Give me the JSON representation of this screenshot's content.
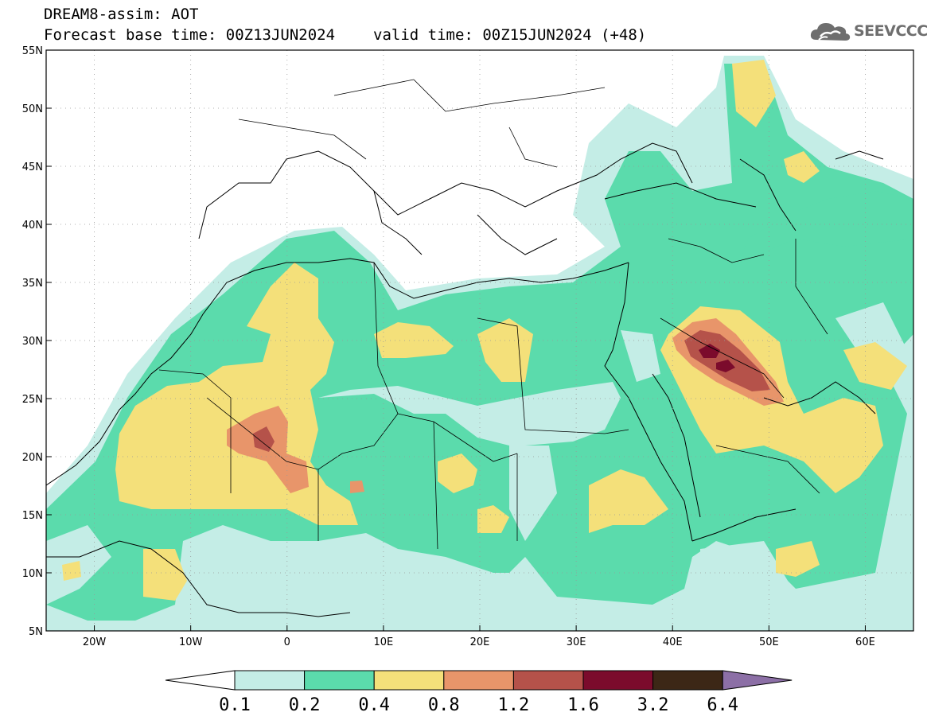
{
  "header": {
    "line1": "DREAM8-assim: AOT",
    "forecast_base": "Forecast base time: 00Z13JUN2024",
    "valid_time": "valid time: 00Z15JUN2024 (+48)"
  },
  "logo": {
    "text": "SEEVCCC",
    "icon": "cloud-icon"
  },
  "map": {
    "lon_range": [
      -25,
      65
    ],
    "lat_range": [
      5,
      55
    ],
    "lon_ticks": [
      "20W",
      "10W",
      "0",
      "10E",
      "20E",
      "30E",
      "40E",
      "50E",
      "60E"
    ],
    "lat_ticks": [
      "5N",
      "10N",
      "15N",
      "20N",
      "25N",
      "30N",
      "35N",
      "40N",
      "45N",
      "50N",
      "55N"
    ],
    "grid": "dotted"
  },
  "colorbar": {
    "labels": [
      "0.1",
      "0.2",
      "0.4",
      "0.8",
      "1.2",
      "1.6",
      "3.2",
      "6.4"
    ],
    "colors": [
      "#ffffff",
      "#c4ede6",
      "#5bdbac",
      "#f4e07a",
      "#e8956a",
      "#b5524a",
      "#7b0b2c",
      "#3c2716",
      "#8c6fa6"
    ]
  },
  "colors": {
    "level1": "#c4ede6",
    "level2": "#5bdbac",
    "level3": "#f4e07a",
    "level4": "#e8956a",
    "level5": "#b5524a",
    "level6": "#7b0b2c"
  }
}
